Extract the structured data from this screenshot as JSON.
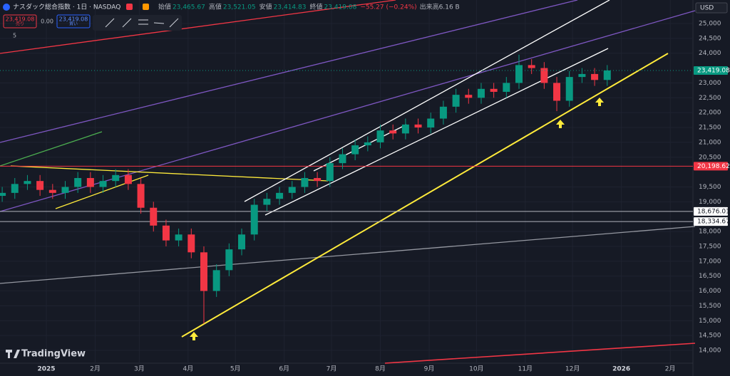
{
  "header": {
    "symbol": "ナスダック総合指数 · 1日 · NASDAQ",
    "ohlc": [
      {
        "label": "始値",
        "value": "23,465.67"
      },
      {
        "label": "高値",
        "value": "23,521.05"
      },
      {
        "label": "安値",
        "value": "23,414.83"
      },
      {
        "label": "終値",
        "value": "23,419.08"
      }
    ],
    "change": "−55.27 (−0.24%)",
    "volume": "出来高6.16 B",
    "sell_price": "23,419.08",
    "sell_label": "売り",
    "spread": "0.00",
    "buy_price": "23,419.08",
    "buy_label": "買い",
    "indicator_count": "5",
    "currency": "USD",
    "brand": "TradingView"
  },
  "chart_data": {
    "type": "candlestick",
    "x": [
      -28,
      -20,
      -12,
      -4,
      4,
      12,
      20,
      28,
      36,
      44,
      52,
      60,
      68,
      76,
      84,
      92,
      100,
      108,
      116,
      124,
      132,
      140,
      148,
      156,
      164,
      172,
      180,
      188,
      196,
      204,
      212,
      220,
      228,
      236,
      244,
      252,
      260,
      268,
      276,
      284,
      292,
      300,
      308,
      316,
      324,
      332,
      340,
      348,
      356
    ],
    "open": [
      19200,
      19300,
      19600,
      19700,
      19400,
      19300,
      19500,
      19800,
      19500,
      19700,
      19900,
      19600,
      18800,
      18200,
      17700,
      17900,
      17300,
      16000,
      16700,
      17400,
      17900,
      18900,
      19100,
      19300,
      19500,
      19800,
      19700,
      20300,
      20600,
      20900,
      21000,
      21400,
      21300,
      21600,
      21500,
      21800,
      22200,
      22600,
      22500,
      22800,
      22700,
      23000,
      23600,
      23500,
      23000,
      22400,
      23200,
      23300,
      23100
    ],
    "high": [
      19500,
      19800,
      19900,
      19900,
      19600,
      19700,
      20000,
      20000,
      19900,
      20100,
      20100,
      19800,
      19000,
      18400,
      18100,
      18100,
      17500,
      16900,
      17600,
      18100,
      19100,
      19300,
      19500,
      19700,
      20000,
      20000,
      20500,
      20800,
      21100,
      21200,
      21600,
      21600,
      21800,
      21800,
      22000,
      22400,
      22800,
      22800,
      23000,
      23000,
      23200,
      23950,
      23800,
      23700,
      23200,
      23400,
      23500,
      23500,
      23600
    ],
    "low": [
      19000,
      19100,
      19400,
      19200,
      19100,
      19100,
      19300,
      19300,
      19300,
      19500,
      19400,
      18600,
      18000,
      17500,
      17500,
      17100,
      14900,
      15800,
      16500,
      17200,
      17700,
      18700,
      18900,
      19100,
      19300,
      19500,
      19500,
      20100,
      20400,
      20700,
      20800,
      21100,
      21100,
      21300,
      21300,
      21600,
      22000,
      22300,
      22300,
      22500,
      22500,
      22800,
      23300,
      22800,
      22050,
      22200,
      23000,
      22900,
      22900
    ],
    "close": [
      19300,
      19600,
      19700,
      19400,
      19300,
      19500,
      19800,
      19500,
      19700,
      19900,
      19600,
      18800,
      18200,
      17700,
      17900,
      17300,
      16000,
      16700,
      17400,
      17900,
      18900,
      19100,
      19300,
      19500,
      19800,
      19700,
      20300,
      20600,
      20900,
      21000,
      21400,
      21300,
      21600,
      21500,
      21800,
      22200,
      22600,
      22500,
      22800,
      22700,
      23000,
      23600,
      23500,
      23000,
      22400,
      23200,
      23300,
      23100,
      23419
    ],
    "up_color": "#089981",
    "down_color": "#f23645",
    "xlim": [
      -29.4,
      409.5
    ],
    "xticks": [
      {
        "value": 0,
        "label": "2025"
      },
      {
        "value": 31,
        "label": "2月"
      },
      {
        "value": 59,
        "label": "3月"
      },
      {
        "value": 90,
        "label": "4月"
      },
      {
        "value": 120,
        "label": "5月"
      },
      {
        "value": 151,
        "label": "6月"
      },
      {
        "value": 181,
        "label": "7月"
      },
      {
        "value": 212,
        "label": "8月"
      },
      {
        "value": 243,
        "label": "9月"
      },
      {
        "value": 273,
        "label": "10月"
      },
      {
        "value": 304,
        "label": "11月"
      },
      {
        "value": 334,
        "label": "12月"
      },
      {
        "value": 365,
        "label": "2026"
      },
      {
        "value": 396,
        "label": "2月"
      }
    ],
    "ylim": [
      13570,
      25790
    ],
    "yticks": [
      {
        "value": 14000,
        "label": "14,000"
      },
      {
        "value": 14500,
        "label": "14,500"
      },
      {
        "value": 15000,
        "label": "15,000"
      },
      {
        "value": 15500,
        "label": "15,500"
      },
      {
        "value": 16000,
        "label": "16,000"
      },
      {
        "value": 16500,
        "label": "16,500"
      },
      {
        "value": 17000,
        "label": "17,000"
      },
      {
        "value": 17500,
        "label": "17,500"
      },
      {
        "value": 18000,
        "label": "18,000"
      },
      {
        "value": 19000,
        "label": "19,000"
      },
      {
        "value": 19500,
        "label": "19,500"
      },
      {
        "value": 20500,
        "label": "20,500"
      },
      {
        "value": 21000,
        "label": "21,000"
      },
      {
        "value": 21500,
        "label": "21,500"
      },
      {
        "value": 22000,
        "label": "22,000"
      },
      {
        "value": 22500,
        "label": "22,500"
      },
      {
        "value": 23000,
        "label": "23,000"
      },
      {
        "value": 24000,
        "label": "24,000"
      },
      {
        "value": 24500,
        "label": "24,500"
      },
      {
        "value": 25000,
        "label": "25,000"
      }
    ],
    "price_lines": [
      {
        "value": 20198.62,
        "label": "20,198.62",
        "color": "#f23645"
      },
      {
        "value": 18676.01,
        "label": "18,676.01",
        "color": "#b2b5be"
      },
      {
        "value": 18334.67,
        "label": "18,334.67",
        "color": "#b2b5be"
      }
    ],
    "last_price": {
      "value": 23419.08,
      "label": "23,419.08",
      "color": "#089981"
    }
  }
}
